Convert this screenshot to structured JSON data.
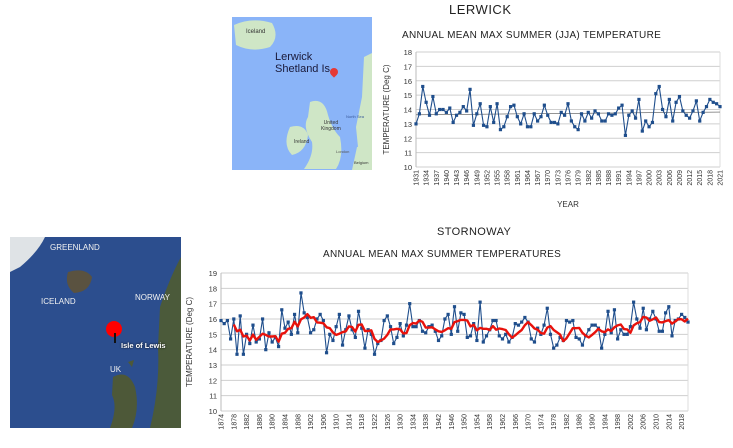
{
  "lerwick": {
    "heading": "LERWICK",
    "map": {
      "place_label_1": "Lerwick",
      "place_label_2": "Shetland Is",
      "labels": [
        "Iceland",
        "United",
        "Kingdom",
        "North Sea",
        "Ireland",
        "London",
        "Belgium"
      ],
      "pin_color": "#e53935"
    }
  },
  "stornoway": {
    "heading": "STORNOWAY",
    "map": {
      "labels": [
        "GREENLAND",
        "ICELAND",
        "NORWAY",
        "UK"
      ],
      "pin_label": "Isle of Lewis",
      "pin_color": "#ff0000"
    }
  },
  "chart_data": [
    {
      "type": "line",
      "title": "ANNUAL MEAN MAX SUMMER  (JJA) TEMPERATURE",
      "xlabel": "YEAR",
      "ylabel": "TEMPERATURE (Deg C)",
      "ylim": [
        10,
        18
      ],
      "yticks": [
        10,
        11,
        12,
        13,
        14,
        15,
        16,
        17,
        18
      ],
      "xtick_step": 3,
      "grid": true,
      "series_color": "#1f4e8c",
      "trendline": "linear",
      "x_start": 1931,
      "values": [
        13.0,
        13.7,
        15.6,
        14.5,
        13.6,
        14.9,
        13.7,
        14.0,
        14.0,
        13.8,
        14.1,
        13.1,
        13.6,
        13.8,
        14.2,
        13.9,
        15.4,
        12.9,
        13.7,
        14.4,
        12.9,
        12.8,
        14.2,
        13.1,
        14.4,
        12.6,
        12.8,
        13.5,
        14.2,
        14.3,
        13.5,
        13.0,
        13.7,
        12.8,
        12.8,
        13.7,
        13.2,
        13.5,
        14.3,
        13.6,
        13.1,
        13.1,
        13.0,
        13.8,
        13.6,
        14.4,
        13.2,
        12.8,
        12.6,
        13.7,
        13.2,
        13.8,
        13.4,
        13.9,
        13.7,
        13.2,
        13.2,
        13.7,
        13.6,
        13.7,
        14.1,
        14.3,
        12.2,
        13.6,
        13.9,
        13.4,
        14.7,
        12.5,
        13.2,
        12.8,
        13.1,
        15.1,
        15.6,
        14.0,
        13.5,
        14.7,
        13.2,
        14.5,
        14.9,
        13.9,
        13.6,
        13.4,
        13.9,
        14.6,
        13.2,
        13.8,
        14.2,
        14.7,
        14.5,
        14.4,
        14.2
      ]
    },
    {
      "type": "line",
      "title": "ANNUAL MEAN MAX SUMMER TEMPERATURES",
      "xlabel": "",
      "ylabel": "TEMPERATURE (Deg C)",
      "ylim": [
        10,
        19
      ],
      "yticks": [
        10,
        11,
        12,
        13,
        14,
        15,
        16,
        17,
        18,
        19
      ],
      "xtick_step": 4,
      "grid": true,
      "series_color": "#1f4e8c",
      "moving_average_color": "#e8120c",
      "moving_average_window": 5,
      "x_start": 1874,
      "values": [
        15.9,
        15.7,
        15.9,
        14.7,
        16.0,
        13.7,
        16.2,
        13.7,
        15.0,
        14.4,
        15.6,
        14.5,
        14.7,
        16.0,
        14.0,
        15.1,
        14.5,
        14.8,
        14.2,
        16.6,
        15.4,
        15.8,
        15.0,
        16.3,
        15.1,
        17.7,
        16.4,
        16.1,
        15.1,
        15.3,
        16.0,
        16.3,
        15.9,
        13.8,
        15.0,
        14.6,
        15.5,
        16.3,
        14.3,
        15.3,
        16.2,
        15.3,
        14.8,
        16.5,
        15.4,
        14.1,
        15.3,
        15.0,
        13.7,
        14.4,
        14.6,
        15.9,
        16.2,
        15.5,
        14.4,
        14.8,
        15.7,
        14.9,
        15.6,
        17.0,
        15.5,
        15.5,
        15.9,
        15.2,
        15.1,
        15.5,
        15.6,
        15.2,
        14.6,
        14.9,
        16.0,
        16.3,
        15.0,
        16.8,
        15.2,
        16.4,
        16.3,
        14.8,
        14.9,
        15.7,
        14.6,
        17.1,
        14.5,
        14.9,
        15.3,
        15.9,
        15.9,
        14.9,
        14.7,
        15.0,
        14.5,
        14.8,
        15.7,
        15.6,
        15.8,
        16.1,
        15.8,
        14.7,
        14.5,
        15.4,
        15.0,
        15.6,
        16.7,
        15.0,
        14.1,
        14.3,
        14.8,
        14.6,
        15.9,
        15.8,
        15.9,
        14.8,
        14.7,
        14.3,
        14.9,
        15.3,
        15.6,
        15.6,
        15.4,
        14.1,
        15.0,
        16.5,
        15.1,
        16.6,
        14.7,
        15.3,
        15.0,
        15.0,
        15.5,
        17.1,
        16.0,
        15.4,
        16.7,
        15.3,
        16.0,
        16.5,
        16.0,
        15.2,
        15.2,
        16.4,
        16.8,
        14.9,
        15.9,
        16.0,
        16.3,
        16.1,
        15.8
      ]
    }
  ]
}
